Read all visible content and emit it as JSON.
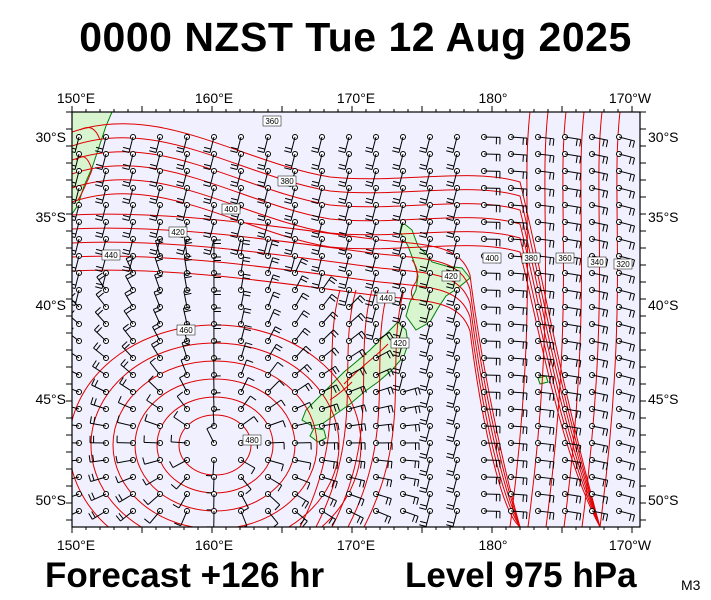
{
  "title": "0000 NZST Tue 12 Aug 2025",
  "footer": {
    "forecast": "Forecast +126 hr",
    "level": "Level 975 hPa",
    "model": "M3"
  },
  "map": {
    "lon_ticks": [
      "150°E",
      "160°E",
      "170°E",
      "180°",
      "170°W"
    ],
    "lat_ticks": [
      "30°S",
      "35°S",
      "40°S",
      "45°S",
      "50°S"
    ],
    "contour_labels": [
      "360",
      "380",
      "400",
      "420",
      "440",
      "440",
      "460",
      "480",
      "420",
      "400",
      "380",
      "360",
      "340",
      "320",
      "420"
    ],
    "colors": {
      "ocean": "#f0f0ff",
      "land": "#d8f5d0",
      "coast": "#008000",
      "contour": "#e00000",
      "barb": "#000000"
    }
  }
}
